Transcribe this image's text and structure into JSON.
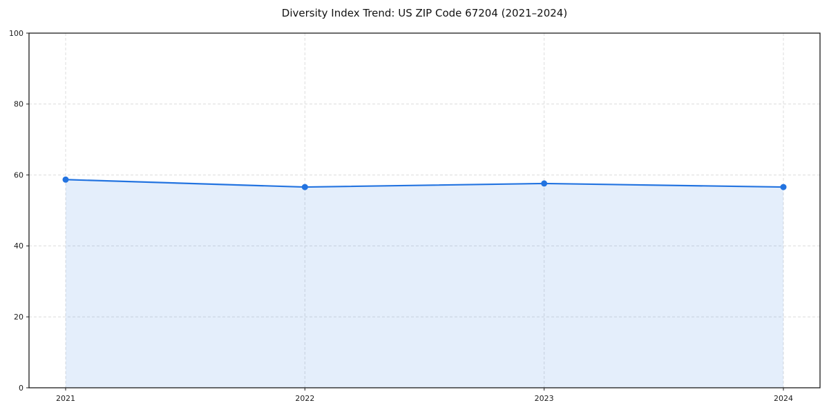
{
  "chart_data": {
    "type": "area",
    "title": "Diversity Index Trend: US ZIP Code 67204 (2021–2024)",
    "x": [
      "2021",
      "2022",
      "2023",
      "2024"
    ],
    "series": [
      {
        "name": "Diversity Index",
        "values": [
          58.7,
          56.6,
          57.6,
          56.6
        ]
      }
    ],
    "xlabel": "",
    "ylabel": "",
    "ylim": [
      0,
      100
    ],
    "yticks": [
      0,
      20,
      40,
      60,
      80,
      100
    ],
    "grid": true,
    "grid_style": "dashed",
    "legend": "none",
    "line_color": "#2273e0",
    "marker_color": "#2273e0",
    "fill_color": "rgba(34, 115, 224, 0.12)",
    "spine_color": "#1a1a1a"
  }
}
